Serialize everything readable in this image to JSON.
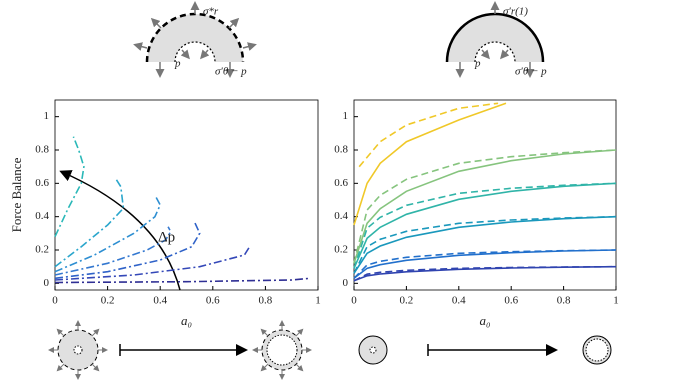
{
  "chart_data": [
    {
      "type": "line",
      "ylabel": "Force Balance",
      "xlabel": "a₀",
      "annotation": "Δp",
      "xlim": [
        0,
        1
      ],
      "ylim": [
        -0.04,
        1.1
      ],
      "xticks": [
        0,
        0.2,
        0.4,
        0.6,
        0.8,
        1
      ],
      "yticks": [
        0,
        0.2,
        0.4,
        0.6,
        0.8,
        1
      ],
      "series": [
        {
          "color": "#2ab8b8",
          "dash": "dashdot",
          "x": [
            0,
            0.05,
            0.1,
            0.11,
            0.09,
            0.07
          ],
          "values": [
            0.28,
            0.45,
            0.6,
            0.7,
            0.8,
            0.88
          ]
        },
        {
          "color": "#2aa6cc",
          "dash": "dashdot",
          "x": [
            0,
            0.1,
            0.2,
            0.26,
            0.25,
            0.23
          ],
          "values": [
            0.1,
            0.22,
            0.35,
            0.45,
            0.58,
            0.63
          ]
        },
        {
          "color": "#2e8fd2",
          "dash": "dashdot",
          "x": [
            0,
            0.15,
            0.3,
            0.38,
            0.4,
            0.38
          ],
          "values": [
            0.07,
            0.17,
            0.3,
            0.4,
            0.47,
            0.53
          ]
        },
        {
          "color": "#3478d0",
          "dash": "dashdot",
          "x": [
            0,
            0.2,
            0.35,
            0.42,
            0.44,
            0.43
          ],
          "values": [
            0.05,
            0.12,
            0.2,
            0.26,
            0.31,
            0.34
          ]
        },
        {
          "color": "#2f62c8",
          "dash": "dashdot",
          "x": [
            0,
            0.2,
            0.4,
            0.52,
            0.55,
            0.53
          ],
          "values": [
            0.03,
            0.07,
            0.14,
            0.22,
            0.3,
            0.37
          ]
        },
        {
          "color": "#3448b8",
          "dash": "dashdot",
          "x": [
            0,
            0.3,
            0.55,
            0.72,
            0.74
          ],
          "values": [
            0.02,
            0.05,
            0.1,
            0.17,
            0.22
          ]
        },
        {
          "color": "#2f2f94",
          "dash": "dashdot",
          "x": [
            0,
            0.5,
            0.9,
            0.97
          ],
          "values": [
            0.005,
            0.01,
            0.02,
            0.03
          ]
        }
      ]
    },
    {
      "type": "line",
      "xlabel": "a₀",
      "xlim": [
        0,
        1
      ],
      "ylim": [
        -0.04,
        1.1
      ],
      "xticks": [
        0,
        0.2,
        0.4,
        0.6,
        0.8,
        1
      ],
      "yticks": [
        0,
        0.2,
        0.4,
        0.6,
        0.8,
        1
      ],
      "series": [
        {
          "color": "#f0c828",
          "dash": "solid",
          "x": [
            0,
            0.05,
            0.1,
            0.2,
            0.4,
            0.58
          ],
          "values": [
            0.35,
            0.6,
            0.72,
            0.85,
            0.98,
            1.08
          ]
        },
        {
          "color": "#f0c828",
          "dash": "dashed",
          "x": [
            0.02,
            0.1,
            0.2,
            0.4,
            0.55
          ],
          "values": [
            0.7,
            0.85,
            0.95,
            1.05,
            1.08
          ]
        },
        {
          "color": "#86c47e",
          "dash": "solid",
          "x": [
            0,
            0.05,
            0.1,
            0.2,
            0.4,
            0.6,
            0.8,
            1
          ],
          "values": [
            0.12,
            0.36,
            0.448,
            0.552,
            0.672,
            0.736,
            0.776,
            0.8
          ]
        },
        {
          "color": "#86c47e",
          "dash": "dashed",
          "x": [
            0,
            0.05,
            0.1,
            0.2,
            0.4,
            0.6,
            0.8,
            1
          ],
          "values": [
            0.12,
            0.44,
            0.528,
            0.624,
            0.72,
            0.76,
            0.784,
            0.8
          ]
        },
        {
          "color": "#30b4a8",
          "dash": "solid",
          "x": [
            0,
            0.05,
            0.1,
            0.2,
            0.4,
            0.6,
            0.8,
            1
          ],
          "values": [
            0.09,
            0.27,
            0.336,
            0.414,
            0.504,
            0.552,
            0.582,
            0.6
          ]
        },
        {
          "color": "#30b4a8",
          "dash": "dashed",
          "x": [
            0,
            0.05,
            0.1,
            0.2,
            0.4,
            0.6,
            0.8,
            1
          ],
          "values": [
            0.09,
            0.33,
            0.396,
            0.468,
            0.54,
            0.57,
            0.588,
            0.6
          ]
        },
        {
          "color": "#1a98bc",
          "dash": "solid",
          "x": [
            0,
            0.05,
            0.1,
            0.2,
            0.4,
            0.6,
            0.8,
            1
          ],
          "values": [
            0.06,
            0.18,
            0.224,
            0.276,
            0.336,
            0.368,
            0.388,
            0.4
          ]
        },
        {
          "color": "#1a98bc",
          "dash": "dashed",
          "x": [
            0,
            0.05,
            0.1,
            0.2,
            0.4,
            0.6,
            0.8,
            1
          ],
          "values": [
            0.06,
            0.22,
            0.264,
            0.312,
            0.36,
            0.38,
            0.392,
            0.4
          ]
        },
        {
          "color": "#2270cc",
          "dash": "solid",
          "x": [
            0,
            0.05,
            0.1,
            0.2,
            0.4,
            0.6,
            0.8,
            1
          ],
          "values": [
            0.03,
            0.09,
            0.112,
            0.138,
            0.168,
            0.184,
            0.194,
            0.2
          ]
        },
        {
          "color": "#2270cc",
          "dash": "dashed",
          "x": [
            0,
            0.05,
            0.1,
            0.2,
            0.4,
            0.6,
            0.8,
            1
          ],
          "values": [
            0.03,
            0.11,
            0.132,
            0.156,
            0.18,
            0.19,
            0.196,
            0.2
          ]
        },
        {
          "color": "#3044b0",
          "dash": "solid",
          "x": [
            0,
            0.05,
            0.1,
            0.2,
            0.4,
            0.6,
            0.8,
            1
          ],
          "values": [
            0.015,
            0.045,
            0.056,
            0.069,
            0.084,
            0.092,
            0.097,
            0.1
          ]
        },
        {
          "color": "#3044b0",
          "dash": "dashed",
          "x": [
            0,
            0.05,
            0.1,
            0.2,
            0.4,
            0.6,
            0.8,
            1
          ],
          "values": [
            0.015,
            0.055,
            0.066,
            0.078,
            0.09,
            0.095,
            0.098,
            0.1
          ]
        }
      ]
    }
  ],
  "diagrams": [
    {
      "sigma_r": "σ*r",
      "p": "p",
      "sigma_theta": "σ′θ − p"
    },
    {
      "sigma_r": "σ′r(1)",
      "p": "p",
      "sigma_theta": "σ′θ − p"
    }
  ]
}
